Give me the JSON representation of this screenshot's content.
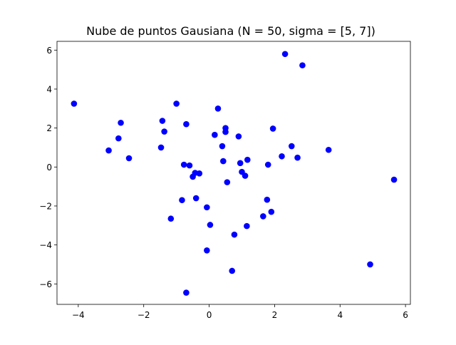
{
  "chart_data": {
    "type": "scatter",
    "title": "Nube de puntos Gausiana (N = 50, sigma = [5, 7])",
    "xlabel": "",
    "ylabel": "",
    "xlim": [
      -4.65,
      6.15
    ],
    "ylim": [
      -7.05,
      6.45
    ],
    "xticks": [
      -4,
      -2,
      0,
      2,
      4,
      6
    ],
    "yticks": [
      -6,
      -4,
      -2,
      0,
      2,
      4,
      6
    ],
    "grid": false,
    "marker_color": "#0000ff",
    "marker": "circle",
    "points": [
      {
        "x": -4.13,
        "y": 3.25
      },
      {
        "x": -3.07,
        "y": 0.85
      },
      {
        "x": -2.77,
        "y": 1.47
      },
      {
        "x": -2.7,
        "y": 2.27
      },
      {
        "x": -2.45,
        "y": 0.45
      },
      {
        "x": -1.47,
        "y": 1.0
      },
      {
        "x": -1.43,
        "y": 2.37
      },
      {
        "x": -1.37,
        "y": 1.82
      },
      {
        "x": -1.17,
        "y": -2.65
      },
      {
        "x": -1.0,
        "y": 3.25
      },
      {
        "x": -0.83,
        "y": -1.7
      },
      {
        "x": -0.77,
        "y": 0.12
      },
      {
        "x": -0.7,
        "y": 2.2
      },
      {
        "x": -0.7,
        "y": -6.45
      },
      {
        "x": -0.6,
        "y": 0.08
      },
      {
        "x": -0.5,
        "y": -0.5
      },
      {
        "x": -0.43,
        "y": -0.3
      },
      {
        "x": -0.4,
        "y": -1.6
      },
      {
        "x": -0.3,
        "y": -0.33
      },
      {
        "x": -0.07,
        "y": -2.07
      },
      {
        "x": -0.07,
        "y": -4.28
      },
      {
        "x": 0.03,
        "y": -2.97
      },
      {
        "x": 0.17,
        "y": 1.65
      },
      {
        "x": 0.27,
        "y": 3.0
      },
      {
        "x": 0.4,
        "y": 1.07
      },
      {
        "x": 0.43,
        "y": 0.3
      },
      {
        "x": 0.5,
        "y": 1.8
      },
      {
        "x": 0.5,
        "y": 2.0
      },
      {
        "x": 0.55,
        "y": -0.78
      },
      {
        "x": 0.7,
        "y": -5.33
      },
      {
        "x": 0.77,
        "y": -3.47
      },
      {
        "x": 0.9,
        "y": 1.57
      },
      {
        "x": 0.95,
        "y": 0.2
      },
      {
        "x": 1.0,
        "y": -0.25
      },
      {
        "x": 1.1,
        "y": -0.45
      },
      {
        "x": 1.17,
        "y": 0.37
      },
      {
        "x": 1.15,
        "y": -3.03
      },
      {
        "x": 1.65,
        "y": -2.53
      },
      {
        "x": 1.77,
        "y": -1.68
      },
      {
        "x": 1.8,
        "y": 0.12
      },
      {
        "x": 1.9,
        "y": -2.3
      },
      {
        "x": 1.95,
        "y": 1.97
      },
      {
        "x": 2.22,
        "y": 0.55
      },
      {
        "x": 2.32,
        "y": 5.8
      },
      {
        "x": 2.52,
        "y": 1.07
      },
      {
        "x": 2.7,
        "y": 0.48
      },
      {
        "x": 2.85,
        "y": 5.22
      },
      {
        "x": 3.65,
        "y": 0.88
      },
      {
        "x": 4.92,
        "y": -5.0
      },
      {
        "x": 5.65,
        "y": -0.65
      }
    ]
  }
}
